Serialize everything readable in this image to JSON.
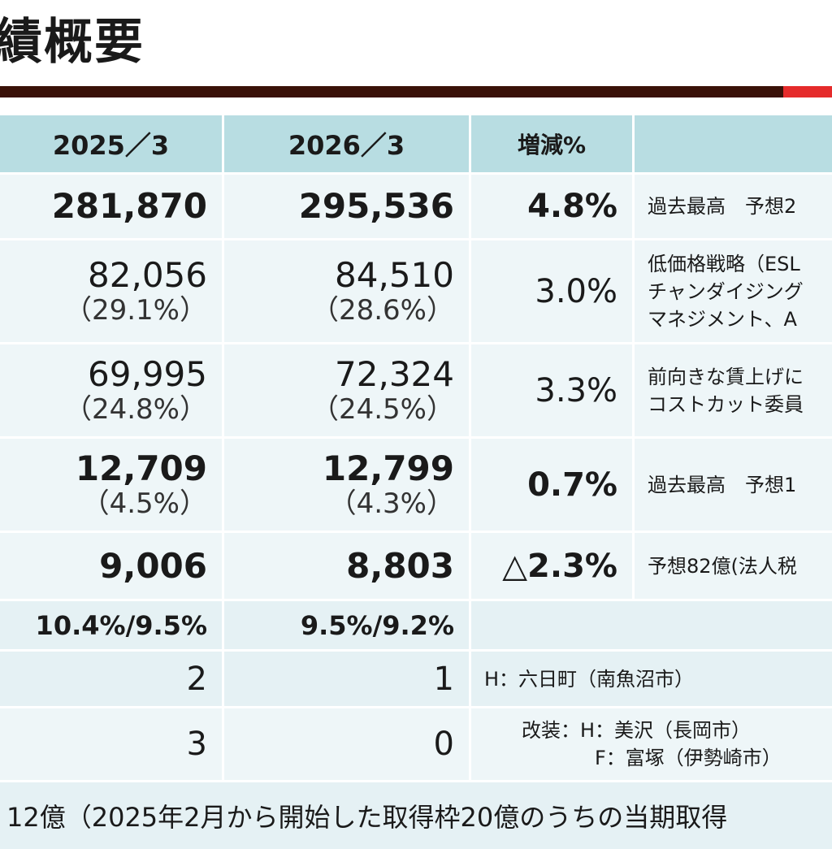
{
  "page": {
    "title": "績概要"
  },
  "table": {
    "headers": [
      "2025／3",
      "2026／3",
      "増減%",
      ""
    ],
    "rows": [
      {
        "v1": "281,870",
        "v2": "295,536",
        "change": "4.8%",
        "note": [
          "過去最高　予想2"
        ]
      },
      {
        "v1": "82,056",
        "r1": "（29.1%）",
        "v2": "84,510",
        "r2": "（28.6%）",
        "change": "3.0%",
        "note": [
          "低価格戦略（ESL",
          "チャンダイジング",
          "マネジメント、A"
        ]
      },
      {
        "v1": "69,995",
        "r1": "（24.8%）",
        "v2": "72,324",
        "r2": "（24.5%）",
        "change": "3.3%",
        "note": [
          "前向きな賃上げに",
          "コストカット委員"
        ]
      },
      {
        "v1": "12,709",
        "r1": "（4.5%）",
        "v2": "12,799",
        "r2": "（4.3%）",
        "change": "0.7%",
        "note": [
          "過去最高　予想1"
        ]
      },
      {
        "v1": "9,006",
        "v2": "8,803",
        "change": "△2.3%",
        "note": [
          "予想82億(法人税"
        ]
      },
      {
        "v1": "10.4%/9.5%",
        "v2": "9.5%/9.2%"
      },
      {
        "v1": "2",
        "v2": "1",
        "note": [
          "H：六日町（南魚沼市）"
        ]
      },
      {
        "v1": "3",
        "v2": "0",
        "note": [
          "改装：H：美沢（長岡市）",
          "F：富塚（伊勢崎市）"
        ]
      }
    ],
    "footer": "12億（2025年2月から開始した取得枠20億のうちの当期取得"
  }
}
